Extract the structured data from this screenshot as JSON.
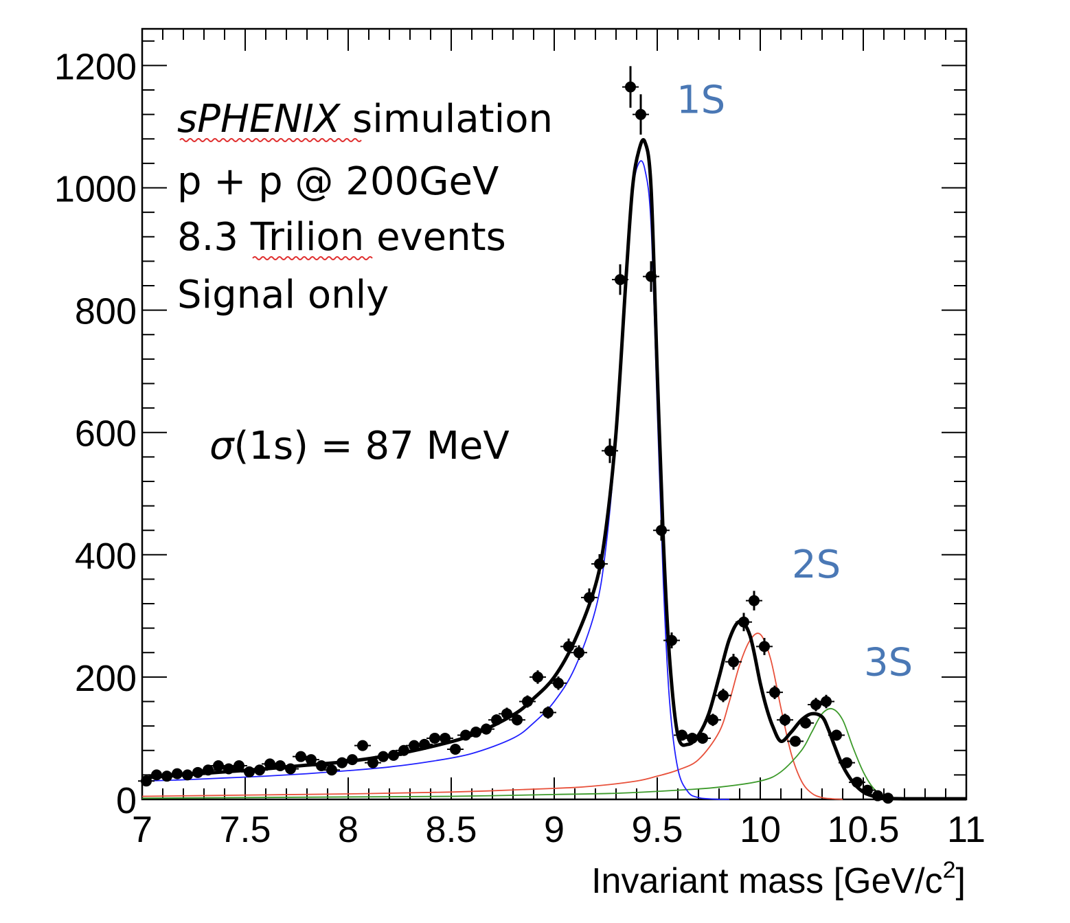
{
  "chart_data": {
    "type": "line",
    "title": "",
    "xlabel": "Invariant mass [GeV/c",
    "xlabel_sup": "2",
    "xlabel_end": "]",
    "ylabel": "",
    "xlim": [
      7,
      11
    ],
    "ylim": [
      0,
      1260
    ],
    "xticks": [
      "7",
      "7.5",
      "8",
      "8.5",
      "9",
      "9.5",
      "10",
      "10.5",
      "11"
    ],
    "yticks": [
      "0",
      "200",
      "400",
      "600",
      "800",
      "1000",
      "1200"
    ],
    "annotations": {
      "experiment": "sPHENIX",
      "simulation": " simulation",
      "system": "p + p @ 200GeV",
      "events": "8.3 Trilion events",
      "signal": "Signal only",
      "sigma_symbol": "σ",
      "sigma_text": "(1s) = 87 MeV"
    },
    "peak_labels": [
      {
        "label": "1S",
        "x": 9.46,
        "y": 1145
      },
      {
        "label": "2S",
        "x": 10.02,
        "y": 385
      },
      {
        "label": "3S",
        "x": 10.37,
        "y": 225
      }
    ],
    "colors": {
      "data": "#000000",
      "total_fit": "#000000",
      "fit_1S": "#1f1fff",
      "fit_2S": "#e8503a",
      "fit_3S": "#3c9a2a",
      "peak_label": "#4a78b5"
    },
    "series": [
      {
        "name": "data",
        "style": "points",
        "points": [
          [
            7.02,
            30
          ],
          [
            7.07,
            40
          ],
          [
            7.12,
            38
          ],
          [
            7.17,
            42
          ],
          [
            7.22,
            40
          ],
          [
            7.27,
            44
          ],
          [
            7.32,
            48
          ],
          [
            7.37,
            55
          ],
          [
            7.42,
            50
          ],
          [
            7.47,
            55
          ],
          [
            7.52,
            45
          ],
          [
            7.57,
            48
          ],
          [
            7.62,
            58
          ],
          [
            7.67,
            55
          ],
          [
            7.72,
            50
          ],
          [
            7.77,
            70
          ],
          [
            7.82,
            65
          ],
          [
            7.87,
            55
          ],
          [
            7.92,
            48
          ],
          [
            7.97,
            60
          ],
          [
            8.02,
            65
          ],
          [
            8.07,
            88
          ],
          [
            8.12,
            60
          ],
          [
            8.17,
            70
          ],
          [
            8.22,
            72
          ],
          [
            8.27,
            80
          ],
          [
            8.32,
            88
          ],
          [
            8.37,
            90
          ],
          [
            8.42,
            100
          ],
          [
            8.47,
            100
          ],
          [
            8.52,
            82
          ],
          [
            8.57,
            105
          ],
          [
            8.62,
            110
          ],
          [
            8.67,
            115
          ],
          [
            8.72,
            130
          ],
          [
            8.77,
            140
          ],
          [
            8.82,
            130
          ],
          [
            8.87,
            160
          ],
          [
            8.92,
            200
          ],
          [
            8.97,
            142
          ],
          [
            9.02,
            190
          ],
          [
            9.07,
            250
          ],
          [
            9.12,
            240
          ],
          [
            9.17,
            330
          ],
          [
            9.22,
            385
          ],
          [
            9.27,
            570
          ],
          [
            9.32,
            850
          ],
          [
            9.37,
            1165
          ],
          [
            9.42,
            1120
          ],
          [
            9.47,
            855
          ],
          [
            9.52,
            440
          ],
          [
            9.57,
            260
          ],
          [
            9.62,
            105
          ],
          [
            9.67,
            100
          ],
          [
            9.72,
            100
          ],
          [
            9.77,
            130
          ],
          [
            9.82,
            170
          ],
          [
            9.87,
            225
          ],
          [
            9.92,
            290
          ],
          [
            9.97,
            325
          ],
          [
            10.02,
            250
          ],
          [
            10.07,
            175
          ],
          [
            10.12,
            130
          ],
          [
            10.17,
            95
          ],
          [
            10.22,
            125
          ],
          [
            10.27,
            155
          ],
          [
            10.32,
            160
          ],
          [
            10.37,
            105
          ],
          [
            10.42,
            60
          ],
          [
            10.47,
            28
          ],
          [
            10.52,
            15
          ],
          [
            10.57,
            6
          ],
          [
            10.62,
            2
          ]
        ],
        "errors": [
          4,
          5,
          5,
          5,
          5,
          5,
          5,
          6,
          5,
          6,
          5,
          5,
          6,
          6,
          5,
          7,
          6,
          6,
          5,
          6,
          6,
          7,
          6,
          7,
          7,
          7,
          8,
          8,
          8,
          8,
          7,
          8,
          8,
          9,
          9,
          10,
          9,
          10,
          11,
          10,
          11,
          13,
          12,
          15,
          16,
          20,
          25,
          34,
          33,
          25,
          17,
          13,
          9,
          9,
          9,
          10,
          11,
          13,
          15,
          16,
          14,
          11,
          10,
          8,
          9,
          11,
          11,
          9,
          7,
          5,
          3,
          2,
          1
        ]
      },
      {
        "name": "total fit",
        "style": "line",
        "x": [
          7.0,
          7.2,
          7.4,
          7.6,
          7.8,
          8.0,
          8.2,
          8.4,
          8.6,
          8.8,
          8.9,
          9.0,
          9.1,
          9.2,
          9.25,
          9.3,
          9.35,
          9.38,
          9.41,
          9.44,
          9.47,
          9.5,
          9.53,
          9.56,
          9.6,
          9.65,
          9.7,
          9.75,
          9.8,
          9.85,
          9.9,
          9.95,
          10.0,
          10.03,
          10.06,
          10.1,
          10.15,
          10.2,
          10.25,
          10.3,
          10.33,
          10.36,
          10.4,
          10.45,
          10.5,
          10.55,
          10.6,
          10.7,
          10.8,
          10.9,
          11.0
        ],
        "y": [
          35,
          40,
          45,
          50,
          56,
          62,
          72,
          86,
          105,
          138,
          165,
          200,
          260,
          350,
          440,
          600,
          860,
          1000,
          1060,
          1075,
          1000,
          700,
          420,
          230,
          105,
          90,
          105,
          140,
          200,
          262,
          291,
          268,
          190,
          150,
          120,
          95,
          110,
          130,
          140,
          135,
          115,
          88,
          55,
          28,
          12,
          5,
          2,
          1,
          1,
          1,
          1
        ]
      },
      {
        "name": "1S fit",
        "style": "line",
        "x": [
          7.0,
          7.2,
          7.4,
          7.6,
          7.8,
          8.0,
          8.2,
          8.4,
          8.6,
          8.8,
          8.9,
          9.0,
          9.1,
          9.2,
          9.25,
          9.3,
          9.35,
          9.38,
          9.41,
          9.44,
          9.47,
          9.5,
          9.53,
          9.56,
          9.6,
          9.65,
          9.7,
          9.75,
          9.8,
          9.85
        ],
        "y": [
          30,
          32,
          35,
          38,
          42,
          47,
          53,
          62,
          75,
          100,
          125,
          160,
          215,
          310,
          410,
          590,
          840,
          990,
          1040,
          1030,
          940,
          640,
          350,
          160,
          50,
          12,
          3,
          1,
          0,
          0
        ]
      },
      {
        "name": "2S fit",
        "style": "line",
        "x": [
          7.0,
          7.5,
          8.0,
          8.5,
          9.0,
          9.2,
          9.4,
          9.5,
          9.6,
          9.7,
          9.8,
          9.85,
          9.9,
          9.95,
          10.0,
          10.05,
          10.1,
          10.15,
          10.2,
          10.25,
          10.3,
          10.35,
          10.4
        ],
        "y": [
          5,
          7,
          9,
          12,
          18,
          22,
          30,
          38,
          48,
          65,
          110,
          160,
          220,
          260,
          270,
          230,
          150,
          75,
          30,
          10,
          3,
          1,
          0
        ]
      },
      {
        "name": "3S fit",
        "style": "line",
        "x": [
          7.0,
          7.5,
          8.0,
          8.5,
          9.0,
          9.3,
          9.6,
          9.8,
          10.0,
          10.1,
          10.2,
          10.25,
          10.3,
          10.35,
          10.4,
          10.45,
          10.5,
          10.55,
          10.6,
          10.65,
          10.7,
          10.8,
          10.9
        ],
        "y": [
          2,
          3,
          4,
          5,
          8,
          10,
          15,
          20,
          30,
          45,
          80,
          110,
          140,
          148,
          130,
          85,
          45,
          18,
          6,
          2,
          0,
          0,
          0
        ]
      }
    ]
  }
}
